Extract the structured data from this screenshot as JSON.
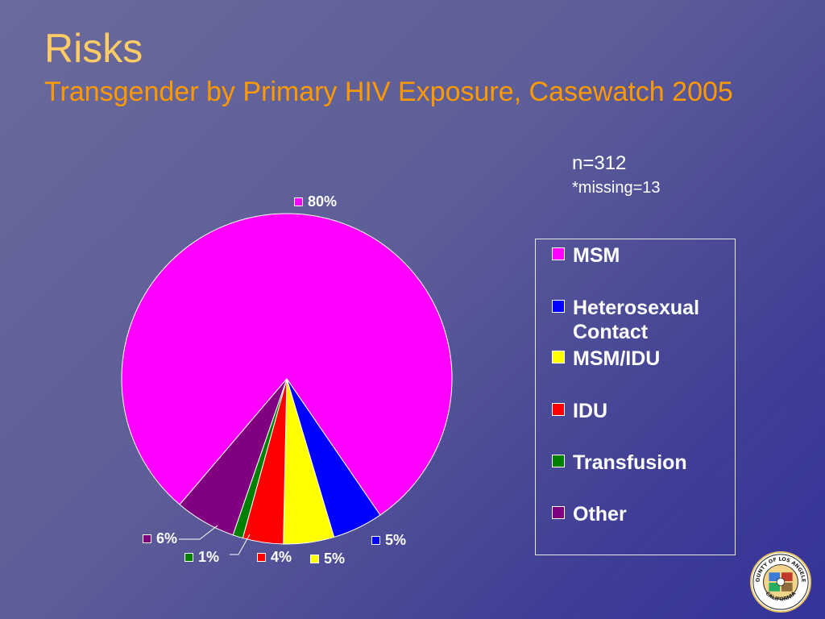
{
  "slide": {
    "title": "Risks",
    "subtitle": "Transgender by Primary HIV Exposure, Casewatch 2005",
    "note_n": "n=312",
    "note_missing": "*missing=13"
  },
  "colors": {
    "title": "#ffcc66",
    "subtitle": "#ff9900",
    "text": "#ffffff"
  },
  "seal_text": [
    "COUNTY OF LOS ANGELES",
    "CALIFORNIA"
  ],
  "chart_data": {
    "type": "pie",
    "categories": [
      "MSM",
      "Heterosexual Contact",
      "MSM/IDU",
      "IDU",
      "Transfusion",
      "Other"
    ],
    "values": [
      80,
      5,
      5,
      4,
      1,
      6
    ],
    "value_labels": [
      "80%",
      "5%",
      "5%",
      "4%",
      "1%",
      "6%"
    ],
    "colors": [
      "#ff00ff",
      "#0000ff",
      "#ffff00",
      "#ff0000",
      "#008000",
      "#800080"
    ],
    "legend_position": "right"
  }
}
